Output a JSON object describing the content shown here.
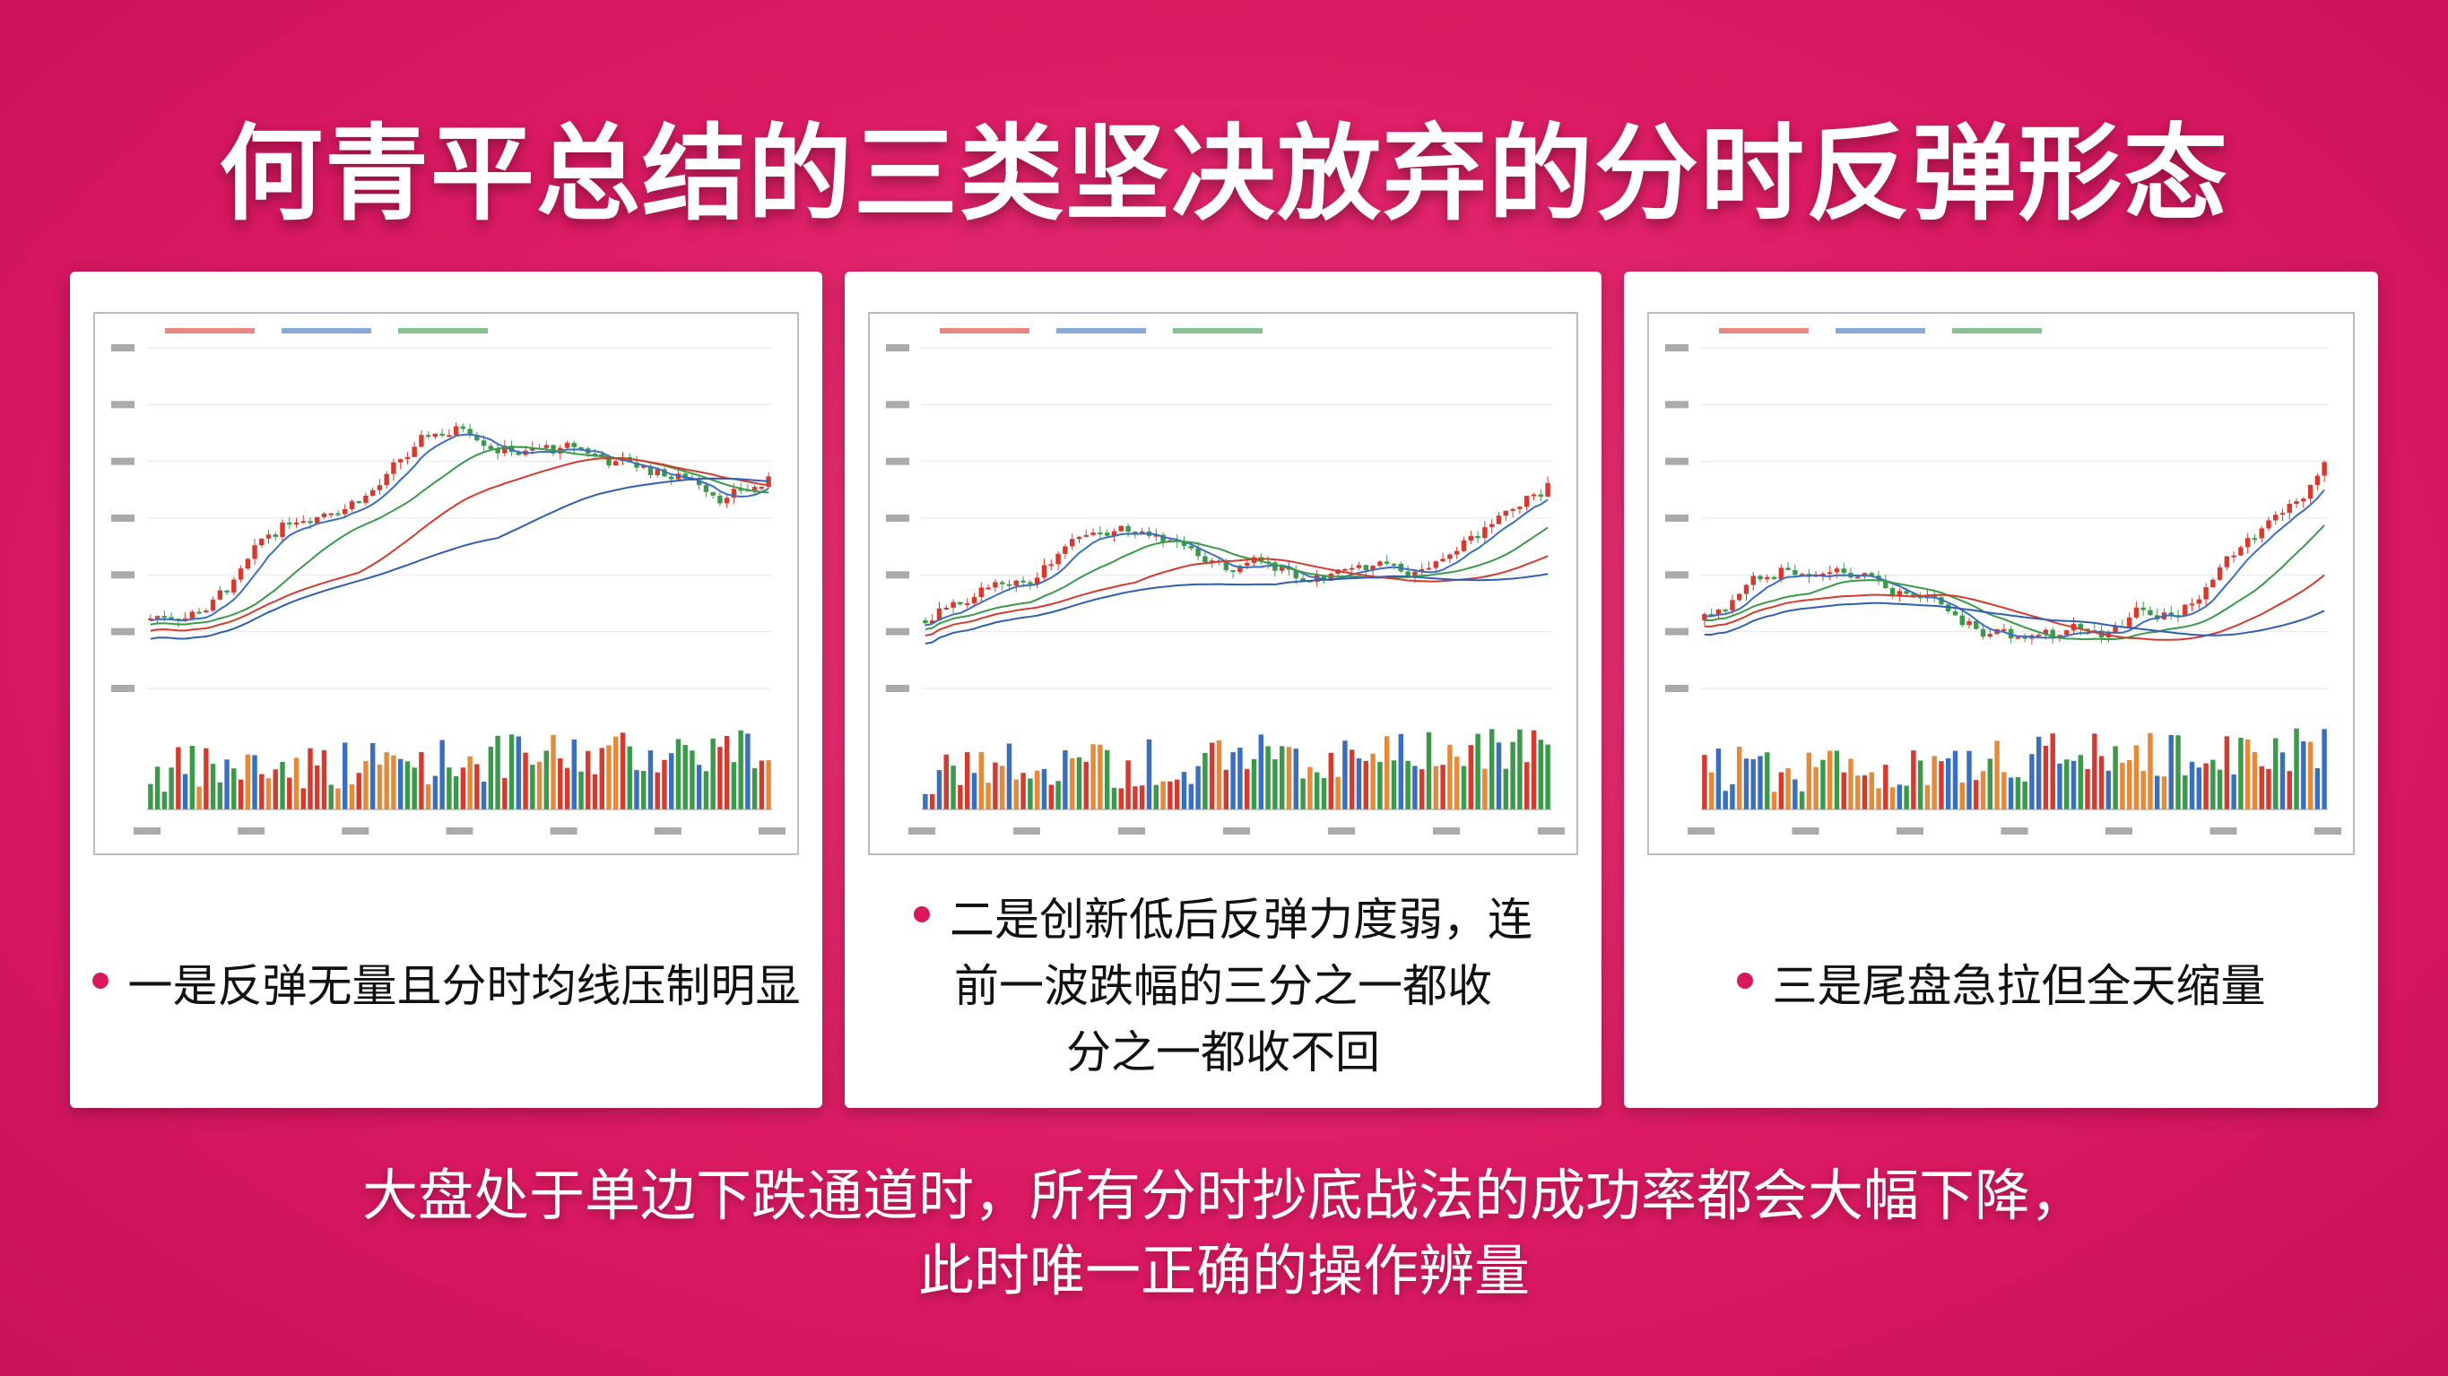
{
  "title": "何青平总结的三类坚决放弃的分时反弹形态",
  "cards": [
    {
      "lines": [
        "一是反弹无量且分时均线压制明显"
      ]
    },
    {
      "lines": [
        "二是创新低后反弹力度弱，连",
        "前一波跌幅的三分之一都收",
        "分之一都收不回"
      ]
    },
    {
      "lines": [
        "三是尾盘急拉但全天缩量"
      ]
    }
  ],
  "footer": {
    "lines": [
      "大盘处于单边下跌通道时，所有分时抄底战法的成功率都会大幅下降，",
      "此时唯一正确的操作辨量"
    ]
  }
}
